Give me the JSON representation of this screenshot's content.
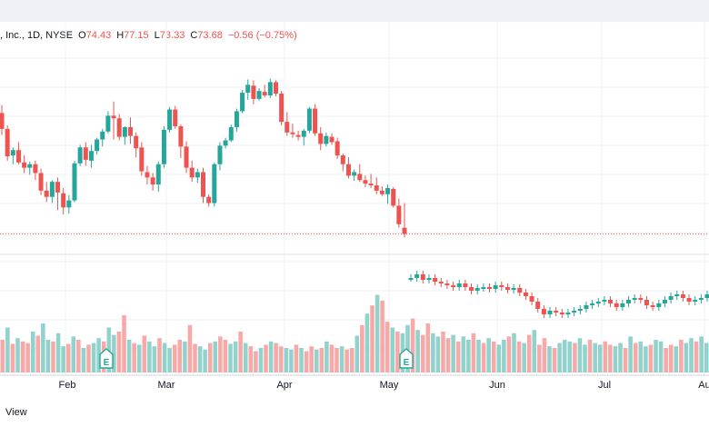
{
  "window": {
    "legend": {
      "name": ", Inc., 1D, NYSE",
      "o_label": "O",
      "o_value": "74.43",
      "h_label": "H",
      "h_value": "77.15",
      "l_label": "L",
      "l_value": "73.33",
      "c_label": "C",
      "c_value": "73.68",
      "change": "−0.56 (−0.75%)"
    },
    "footer": {
      "text": "View"
    }
  },
  "colors": {
    "up": "#26a69a",
    "down": "#ef5350",
    "vol_up": "#92d2cc",
    "vol_down": "#f7a9a7",
    "grid": "#eef1f6",
    "last_price_line": "#ef5350"
  },
  "chart_data": {
    "type": "candlestick",
    "x_ticks": [
      "Feb",
      "Mar",
      "Apr",
      "May",
      "Jun",
      "Jul",
      "Au"
    ],
    "earnings_markers": [
      "E",
      "E"
    ],
    "price_ylim": [
      72,
      93
    ],
    "last_price": 73.68,
    "candles": [
      [
        87.4,
        88.3,
        84.9,
        85.6
      ],
      [
        85.6,
        86.0,
        82.0,
        82.5
      ],
      [
        82.6,
        83.5,
        81.6,
        83.2
      ],
      [
        83.2,
        84.1,
        81.6,
        81.8
      ],
      [
        81.8,
        82.6,
        80.6,
        81.2
      ],
      [
        81.2,
        81.9,
        80.4,
        81.6
      ],
      [
        81.6,
        82.0,
        79.8,
        80.6
      ],
      [
        80.6,
        81.1,
        78.1,
        78.6
      ],
      [
        78.6,
        79.6,
        77.3,
        77.9
      ],
      [
        77.9,
        79.8,
        77.2,
        79.6
      ],
      [
        79.6,
        80.1,
        76.4,
        78.4
      ],
      [
        78.3,
        78.9,
        75.9,
        76.7
      ],
      [
        76.7,
        78.1,
        76.0,
        77.5
      ],
      [
        77.5,
        82.0,
        77.3,
        81.7
      ],
      [
        81.7,
        83.8,
        81.4,
        83.5
      ],
      [
        83.5,
        84.1,
        81.4,
        82.1
      ],
      [
        82.0,
        83.8,
        81.2,
        83.1
      ],
      [
        83.1,
        84.6,
        82.7,
        84.4
      ],
      [
        84.4,
        85.6,
        83.6,
        85.3
      ],
      [
        85.3,
        87.6,
        85.1,
        87.1
      ],
      [
        87.1,
        88.7,
        84.4,
        86.8
      ],
      [
        86.8,
        87.3,
        84.3,
        84.7
      ],
      [
        84.7,
        85.9,
        83.8,
        85.8
      ],
      [
        85.8,
        86.9,
        83.9,
        84.8
      ],
      [
        84.8,
        85.2,
        82.4,
        83.4
      ],
      [
        83.5,
        84.1,
        80.3,
        80.8
      ],
      [
        80.7,
        81.4,
        79.3,
        80.1
      ],
      [
        80.1,
        80.6,
        78.6,
        79.3
      ],
      [
        79.3,
        81.9,
        78.5,
        81.6
      ],
      [
        81.6,
        85.9,
        81.2,
        85.5
      ],
      [
        85.5,
        88.1,
        85.2,
        87.8
      ],
      [
        87.8,
        88.2,
        85.6,
        85.9
      ],
      [
        85.9,
        86.1,
        82.3,
        83.6
      ],
      [
        83.6,
        84.2,
        80.6,
        81.2
      ],
      [
        81.2,
        82.0,
        79.6,
        80.1
      ],
      [
        80.1,
        81.1,
        79.5,
        80.7
      ],
      [
        80.7,
        81.2,
        77.2,
        77.9
      ],
      [
        77.9,
        78.2,
        76.8,
        77.2
      ],
      [
        77.2,
        81.8,
        76.8,
        81.6
      ],
      [
        81.6,
        84.1,
        80.9,
        83.7
      ],
      [
        83.7,
        84.6,
        83.4,
        84.3
      ],
      [
        84.3,
        86.1,
        84.1,
        85.8
      ],
      [
        85.8,
        87.9,
        85.3,
        87.6
      ],
      [
        87.6,
        90.0,
        87.4,
        89.7
      ],
      [
        89.7,
        91.2,
        88.9,
        90.6
      ],
      [
        90.5,
        91.1,
        88.4,
        89.0
      ],
      [
        89.0,
        90.2,
        88.8,
        89.9
      ],
      [
        89.8,
        90.6,
        89.2,
        89.4
      ],
      [
        89.4,
        91.3,
        89.1,
        90.9
      ],
      [
        90.9,
        91.1,
        89.3,
        89.6
      ],
      [
        89.6,
        89.9,
        86.0,
        86.4
      ],
      [
        86.4,
        87.5,
        84.8,
        85.2
      ],
      [
        85.2,
        86.2,
        84.6,
        85.0
      ],
      [
        84.9,
        85.4,
        84.3,
        84.7
      ],
      [
        84.7,
        85.6,
        83.7,
        85.4
      ],
      [
        85.4,
        88.1,
        85.1,
        87.9
      ],
      [
        87.9,
        88.4,
        84.8,
        85.1
      ],
      [
        85.1,
        85.8,
        83.2,
        83.9
      ],
      [
        83.9,
        85.2,
        83.6,
        84.8
      ],
      [
        84.7,
        85.1,
        83.8,
        84.1
      ],
      [
        84.2,
        84.6,
        82.2,
        82.6
      ],
      [
        82.6,
        82.8,
        80.8,
        81.6
      ],
      [
        81.6,
        82.4,
        80.0,
        80.3
      ],
      [
        80.3,
        81.0,
        79.7,
        80.7
      ],
      [
        80.5,
        81.6,
        79.6,
        79.8
      ],
      [
        79.8,
        80.3,
        79.0,
        79.4
      ],
      [
        79.4,
        80.5,
        78.9,
        79.2
      ],
      [
        79.2,
        80.1,
        78.2,
        78.6
      ],
      [
        78.6,
        79.1,
        78.0,
        78.2
      ],
      [
        78.2,
        79.3,
        77.1,
        78.9
      ],
      [
        78.8,
        79.0,
        76.7,
        76.9
      ],
      [
        76.9,
        77.7,
        74.4,
        74.8
      ],
      [
        74.4,
        77.2,
        73.3,
        73.7
      ]
    ],
    "volume_bars": [
      0.4,
      0.55,
      0.35,
      0.42,
      0.38,
      0.36,
      0.5,
      0.45,
      0.6,
      0.4,
      0.38,
      0.48,
      0.32,
      0.35,
      0.44,
      0.4,
      0.3,
      0.34,
      0.36,
      0.42,
      0.38,
      0.55,
      0.46,
      0.5,
      0.7,
      0.4,
      0.36,
      0.34,
      0.45,
      0.38,
      0.32,
      0.42,
      0.36,
      0.3,
      0.34,
      0.4,
      0.38,
      0.58,
      0.35,
      0.32,
      0.28,
      0.36,
      0.38,
      0.44,
      0.4,
      0.35,
      0.38,
      0.5,
      0.36,
      0.32,
      0.26,
      0.3,
      0.34,
      0.38,
      0.36,
      0.32,
      0.3,
      0.28,
      0.34,
      0.3,
      0.26,
      0.32,
      0.28,
      0.3,
      0.38,
      0.34,
      0.3,
      0.32,
      0.28,
      0.3,
      0.45,
      0.58,
      0.72,
      0.82,
      0.95,
      0.88,
      0.62,
      0.55,
      0.5,
      0.48,
      0.58,
      0.66,
      0.52,
      0.46,
      0.6,
      0.48,
      0.44,
      0.5,
      0.42,
      0.46,
      0.38,
      0.44,
      0.4,
      0.48,
      0.4,
      0.36,
      0.42,
      0.38,
      0.34,
      0.4,
      0.44,
      0.48,
      0.38,
      0.36,
      0.46,
      0.52,
      0.34,
      0.42,
      0.32,
      0.3,
      0.36,
      0.4,
      0.38,
      0.36,
      0.42,
      0.34,
      0.4,
      0.36,
      0.34,
      0.38,
      0.34,
      0.32,
      0.36,
      0.3,
      0.44,
      0.36,
      0.38,
      0.32,
      0.34,
      0.4,
      0.38,
      0.3,
      0.34,
      0.32,
      0.4,
      0.36,
      0.42,
      0.38,
      0.44,
      0.36
    ],
    "volume_bars_up": [
      0,
      1,
      0,
      1,
      0,
      0,
      1,
      0,
      1,
      1,
      0,
      1,
      1,
      0,
      1,
      0,
      1,
      0,
      1,
      1,
      0,
      1,
      1,
      0,
      0,
      1,
      0,
      1,
      0,
      1,
      1,
      0,
      1,
      1,
      0,
      0,
      1,
      0,
      0,
      1,
      1,
      0,
      1,
      0,
      0,
      1,
      1,
      0,
      1,
      0,
      0,
      1,
      0,
      1,
      0,
      0,
      1,
      1,
      0,
      1,
      0,
      0,
      1,
      0,
      1,
      0,
      0,
      1,
      0,
      0,
      1,
      0,
      1,
      0,
      1,
      0,
      0,
      1,
      0,
      1,
      1,
      0,
      1,
      0,
      0,
      1,
      1,
      0,
      0,
      1,
      0,
      1,
      1,
      0,
      1,
      0,
      1,
      0,
      1,
      1,
      0,
      1,
      0,
      1,
      0,
      1,
      0,
      0,
      1,
      0,
      1,
      1,
      1,
      0,
      1,
      1,
      0,
      1,
      1,
      0,
      0,
      1,
      1,
      0,
      1,
      0,
      1,
      1,
      0,
      1,
      1,
      0,
      0,
      1,
      0,
      1,
      1,
      0,
      1,
      1
    ],
    "lower_candles": [
      0.8,
      0.84,
      0.78,
      0.8,
      0.76,
      0.74,
      0.72,
      0.7,
      0.74,
      0.7,
      0.66,
      0.69,
      0.7,
      0.68,
      0.72,
      0.7,
      0.67,
      0.69,
      0.64,
      0.6,
      0.54,
      0.46,
      0.4,
      0.44,
      0.42,
      0.4,
      0.42,
      0.44,
      0.46,
      0.5,
      0.52,
      0.54,
      0.56,
      0.52,
      0.48,
      0.52,
      0.56,
      0.58,
      0.56,
      0.5,
      0.48,
      0.52,
      0.56,
      0.6,
      0.62,
      0.58,
      0.54,
      0.56,
      0.58,
      0.62
    ]
  }
}
